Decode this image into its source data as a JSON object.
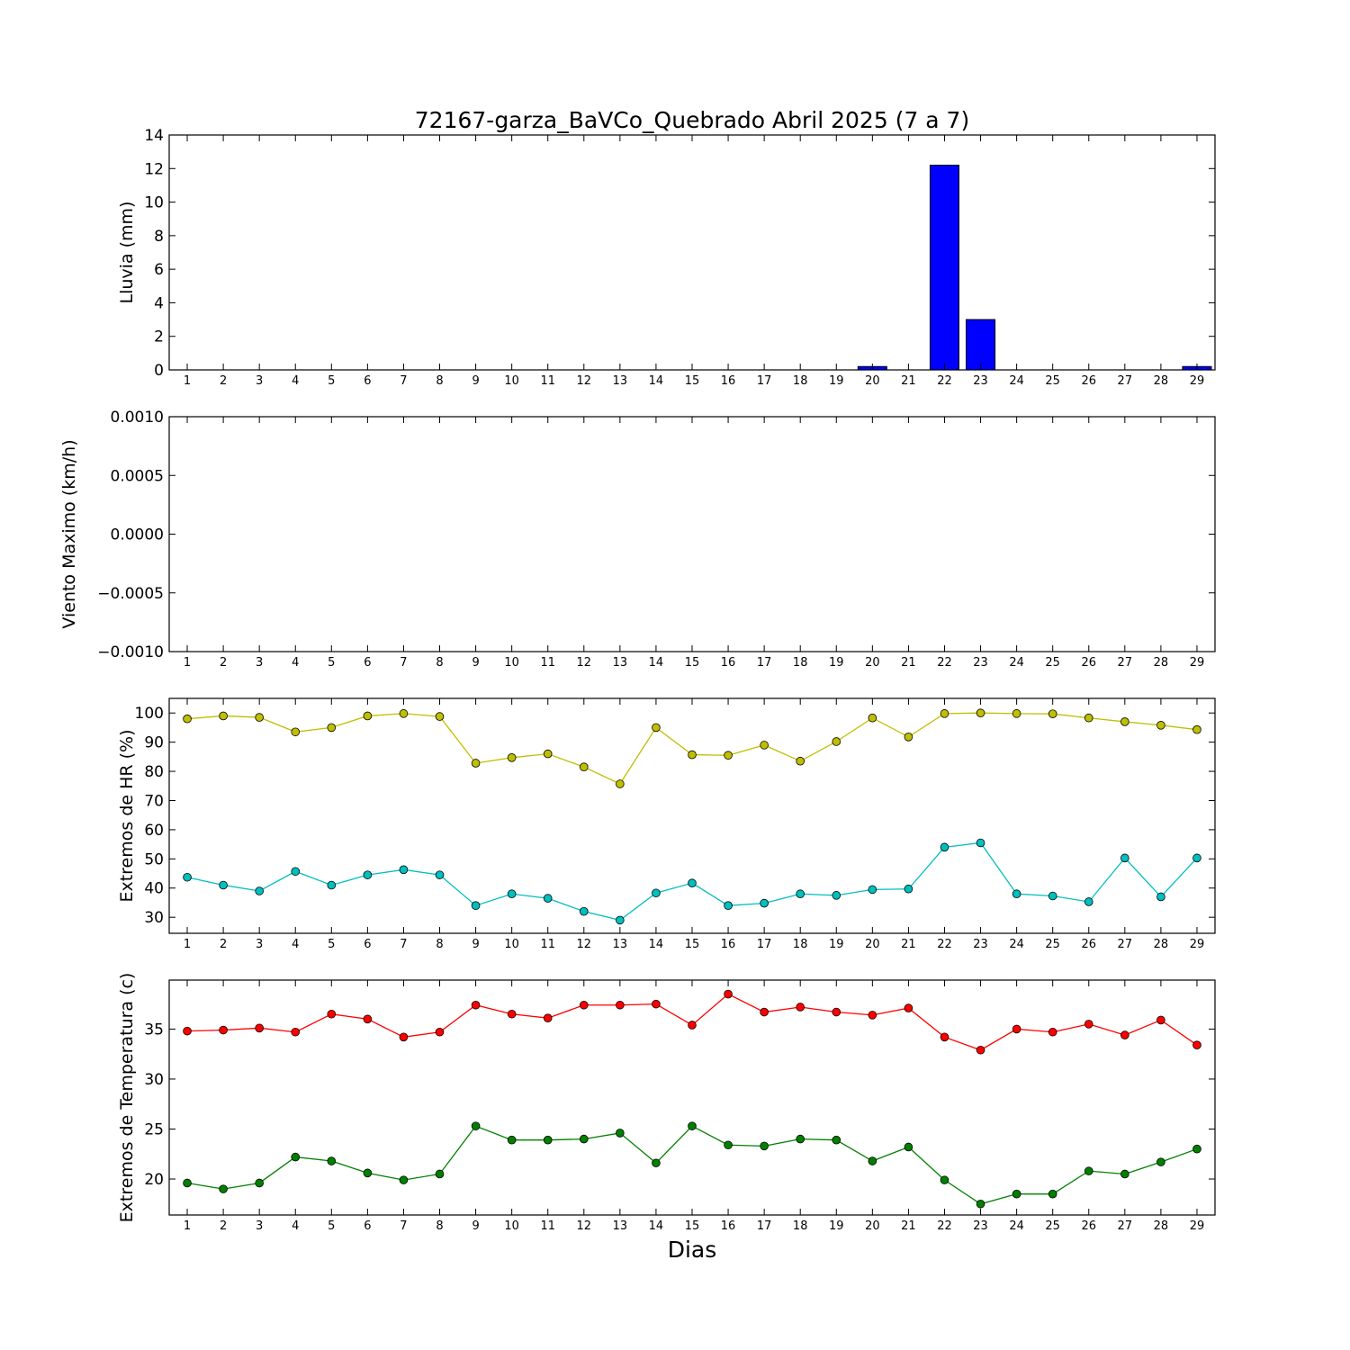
{
  "figure_title": "72167-garza_BaVCo_Quebrado Abril 2025  (7 a 7)",
  "x_axis_label": "Dias",
  "colors": {
    "lluvia": "#0000ff",
    "hr_max": "#bfbf00",
    "hr_min": "#00bfbf",
    "temp_max": "#ff0000",
    "temp_min": "#008000"
  },
  "chart_data": [
    {
      "type": "bar",
      "ylabel": "Lluvia (mm)",
      "ylim": [
        0,
        14
      ],
      "yticks": [
        "0",
        "2",
        "4",
        "6",
        "8",
        "10",
        "12",
        "14"
      ],
      "categories": [
        "1",
        "2",
        "3",
        "4",
        "5",
        "6",
        "7",
        "8",
        "9",
        "10",
        "11",
        "12",
        "13",
        "14",
        "15",
        "16",
        "17",
        "18",
        "19",
        "20",
        "21",
        "22",
        "23",
        "24",
        "25",
        "26",
        "27",
        "28",
        "29"
      ],
      "values": [
        0,
        0,
        0,
        0,
        0,
        0,
        0,
        0,
        0,
        0,
        0,
        0,
        0,
        0,
        0,
        0,
        0,
        0,
        0,
        0.2,
        0,
        12.2,
        3.0,
        0,
        0,
        0,
        0,
        0,
        0.2
      ],
      "grid": false
    },
    {
      "type": "line",
      "ylabel": "Viento Maximo (km/h)",
      "ylim": [
        -0.001,
        0.001
      ],
      "yticks": [
        "−0.0010",
        "−0.0005",
        "0.0000",
        "0.0005",
        "0.0010"
      ],
      "categories": [
        "1",
        "2",
        "3",
        "4",
        "5",
        "6",
        "7",
        "8",
        "9",
        "10",
        "11",
        "12",
        "13",
        "14",
        "15",
        "16",
        "17",
        "18",
        "19",
        "20",
        "21",
        "22",
        "23",
        "24",
        "25",
        "26",
        "27",
        "28",
        "29"
      ],
      "series": [],
      "grid": false
    },
    {
      "type": "line",
      "ylabel": "Extremos de HR (%)",
      "ylim": [
        24.5,
        105
      ],
      "yticks": [
        "30",
        "40",
        "50",
        "60",
        "70",
        "80",
        "90",
        "100"
      ],
      "categories": [
        "1",
        "2",
        "3",
        "4",
        "5",
        "6",
        "7",
        "8",
        "9",
        "10",
        "11",
        "12",
        "13",
        "14",
        "15",
        "16",
        "17",
        "18",
        "19",
        "20",
        "21",
        "22",
        "23",
        "24",
        "25",
        "26",
        "27",
        "28",
        "29"
      ],
      "series": [
        {
          "values": [
            98,
            99,
            98.5,
            93.5,
            95,
            99,
            99.8,
            98.8,
            82.8,
            84.7,
            86,
            81.5,
            75.7,
            95,
            85.7,
            85.5,
            89,
            83.5,
            90.2,
            98.3,
            91.8,
            99.8,
            100,
            99.8,
            99.7,
            98.3,
            97,
            95.8,
            94.3
          ]
        },
        {
          "values": [
            43.7,
            41,
            39,
            45.7,
            41,
            44.5,
            46.3,
            44.5,
            34,
            38,
            36.5,
            32,
            29,
            38.3,
            41.7,
            34,
            34.8,
            38,
            37.5,
            39.5,
            39.7,
            54,
            55.5,
            38,
            37.3,
            35.3,
            50.3,
            37,
            50.3
          ]
        }
      ],
      "grid": false
    },
    {
      "type": "line",
      "ylabel": "Extremos de Temperatura (c)",
      "ylim": [
        16.4,
        39.9
      ],
      "yticks": [
        "20",
        "25",
        "30",
        "35"
      ],
      "categories": [
        "1",
        "2",
        "3",
        "4",
        "5",
        "6",
        "7",
        "8",
        "9",
        "10",
        "11",
        "12",
        "13",
        "14",
        "15",
        "16",
        "17",
        "18",
        "19",
        "20",
        "21",
        "22",
        "23",
        "24",
        "25",
        "26",
        "27",
        "28",
        "29"
      ],
      "series": [
        {
          "values": [
            34.8,
            34.9,
            35.1,
            34.7,
            36.5,
            36.0,
            34.2,
            34.7,
            37.4,
            36.5,
            36.1,
            37.4,
            37.4,
            37.5,
            35.4,
            38.5,
            36.7,
            37.2,
            36.7,
            36.4,
            37.1,
            34.2,
            32.9,
            35.0,
            34.7,
            35.5,
            34.4,
            35.9,
            33.4
          ]
        },
        {
          "values": [
            19.6,
            19.0,
            19.6,
            22.2,
            21.8,
            20.6,
            19.9,
            20.5,
            25.3,
            23.9,
            23.9,
            24.0,
            24.6,
            21.6,
            25.3,
            23.4,
            23.3,
            24.0,
            23.9,
            21.8,
            23.2,
            19.9,
            17.5,
            18.5,
            18.5,
            20.8,
            20.5,
            21.7,
            23.0
          ]
        }
      ],
      "grid": false
    }
  ]
}
